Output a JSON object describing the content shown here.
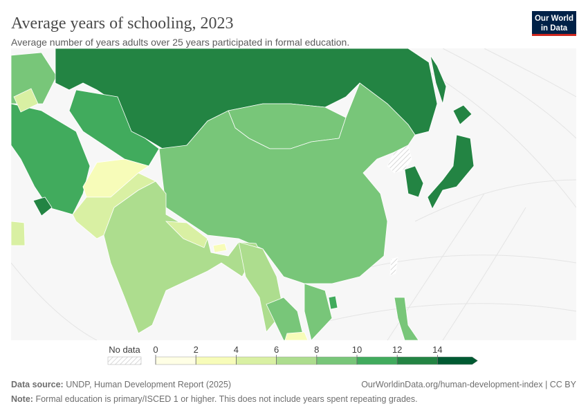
{
  "header": {
    "title": "Average years of schooling, 2023",
    "subtitle": "Average number of years adults over 25 years participated in formal education.",
    "logo": [
      "Our World",
      "in Data"
    ]
  },
  "legend": {
    "no_data": "No data",
    "ticks": [
      0,
      2,
      4,
      6,
      8,
      10,
      12,
      14
    ],
    "colors": [
      "#ffffe5",
      "#f7fcb9",
      "#d9f0a3",
      "#addd8e",
      "#78c679",
      "#41ab5d",
      "#238443",
      "#005a32"
    ]
  },
  "footer": {
    "source_label": "Data source:",
    "source": "UNDP, Human Development Report (2025)",
    "url": "OurWorldinData.org/human-development-index | CC BY",
    "note_label": "Note:",
    "note": "Formal education is primary/ISCED 1 or higher. This does not include years spent repeating grades."
  }
}
